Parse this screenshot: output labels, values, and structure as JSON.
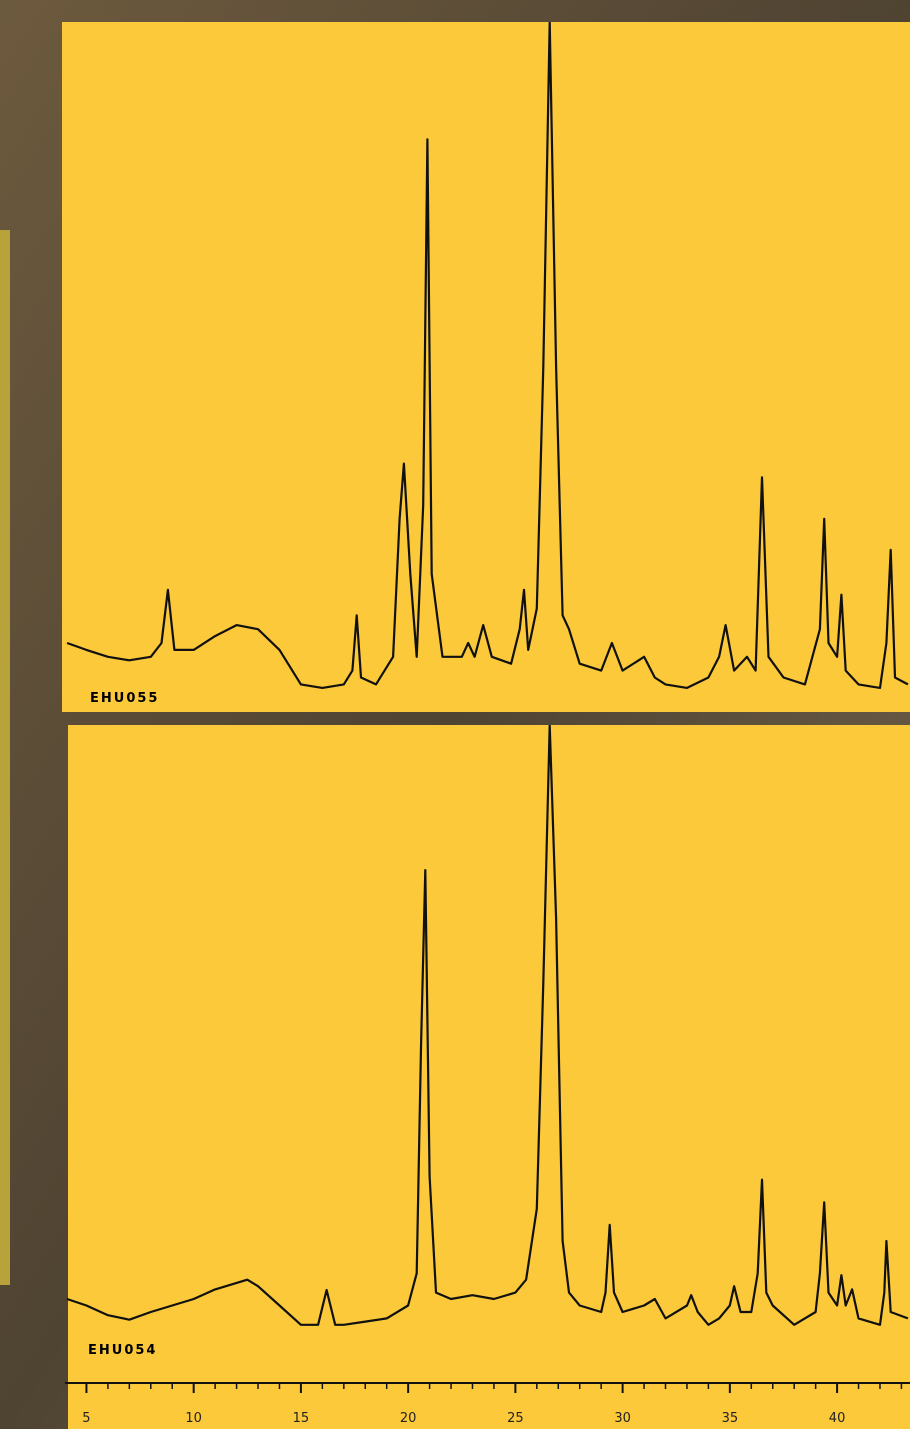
{
  "chart_data": [
    {
      "type": "line",
      "label": "EHU055",
      "color": "#111111",
      "xlim": [
        4,
        43.4
      ],
      "ylim": [
        0,
        100
      ],
      "x": [
        4.1,
        5,
        6,
        7,
        8,
        8.5,
        8.8,
        9.1,
        10,
        11,
        12,
        13,
        14,
        15,
        16,
        17,
        17.4,
        17.6,
        17.8,
        18.5,
        19.3,
        19.6,
        19.8,
        20.1,
        20.4,
        20.7,
        20.9,
        21.1,
        21.6,
        22.5,
        22.8,
        23.1,
        23.5,
        23.9,
        24.8,
        25.2,
        25.4,
        25.6,
        26,
        26.3,
        26.6,
        26.9,
        27.2,
        27.5,
        28,
        29,
        29.5,
        30,
        31,
        31.5,
        32,
        33,
        34,
        34.5,
        34.8,
        35.2,
        35.8,
        36.2,
        36.5,
        36.8,
        37.5,
        38.5,
        39.2,
        39.4,
        39.6,
        40,
        40.2,
        40.4,
        41,
        42,
        42.3,
        42.5,
        42.7,
        43.3
      ],
      "values": [
        10,
        9,
        8,
        7.5,
        8,
        10,
        17.7,
        9,
        9,
        11,
        12.6,
        12,
        9,
        4,
        3.5,
        4,
        6,
        14,
        5,
        4,
        8,
        28,
        36,
        20,
        8,
        30,
        83,
        20,
        8,
        8,
        10,
        8,
        12.6,
        8,
        7,
        12,
        17.7,
        9,
        15,
        50,
        100,
        50,
        14,
        12,
        7,
        6,
        10,
        6,
        8,
        5,
        4,
        3.5,
        5,
        8,
        12.6,
        6,
        8,
        6,
        34,
        8,
        5,
        4,
        12,
        28,
        10,
        8,
        17,
        6,
        4,
        3.5,
        10,
        23.5,
        5,
        4
      ]
    },
    {
      "type": "line",
      "label": "EHU054",
      "color": "#111111",
      "xlim": [
        4,
        43.4
      ],
      "ylim": [
        0,
        100
      ],
      "xticks": [
        5,
        10,
        15,
        20,
        25,
        30,
        35,
        40
      ],
      "xticks_minor": [
        6,
        7,
        8,
        9,
        11,
        12,
        13,
        14,
        16,
        17,
        18,
        19,
        21,
        22,
        23,
        24,
        26,
        27,
        28,
        29,
        31,
        32,
        33,
        34,
        36,
        37,
        38,
        39,
        41,
        42,
        43
      ],
      "x": [
        4.1,
        5,
        6,
        7,
        8,
        9,
        10,
        11,
        12,
        12.5,
        13,
        14,
        15,
        15.8,
        16.2,
        16.6,
        17,
        18,
        19,
        20,
        20.4,
        20.6,
        20.8,
        21,
        21.3,
        22,
        23,
        24,
        25,
        25.5,
        26,
        26.3,
        26.6,
        26.9,
        27.2,
        27.5,
        28,
        29,
        29.2,
        29.4,
        29.6,
        30,
        31,
        31.5,
        32,
        33,
        33.2,
        33.5,
        34,
        34.5,
        35,
        35.2,
        35.5,
        36,
        36.3,
        36.5,
        36.7,
        37,
        38,
        39,
        39.2,
        39.4,
        39.6,
        40,
        40.2,
        40.4,
        40.7,
        41,
        42,
        42.2,
        42.3,
        42.5,
        43.3
      ],
      "values": [
        11,
        10,
        8.5,
        7.8,
        9,
        10,
        11,
        12.5,
        13.5,
        14,
        13,
        10,
        7,
        7,
        12.4,
        7,
        7,
        7.5,
        8,
        10,
        15,
        50,
        77.5,
        30,
        12,
        11,
        11.6,
        11,
        12,
        14,
        25,
        60,
        100,
        70,
        20,
        12,
        10,
        9,
        12,
        22.5,
        12,
        9,
        10,
        11,
        8,
        10,
        11.6,
        9,
        7,
        8,
        10,
        13,
        9,
        9,
        15,
        29.5,
        12,
        10,
        7,
        9,
        15,
        26,
        12,
        10,
        14.7,
        10,
        12.5,
        8,
        7,
        12,
        20,
        9,
        8
      ]
    }
  ]
}
